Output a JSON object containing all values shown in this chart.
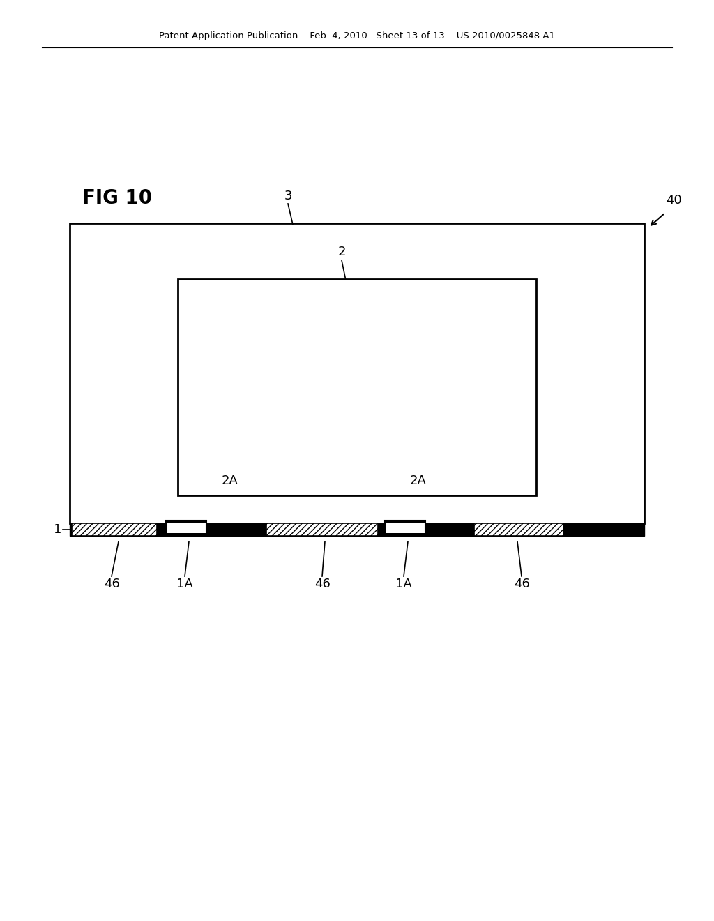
{
  "bg_color": "#ffffff",
  "line_color": "#000000",
  "header_text": "Patent Application Publication    Feb. 4, 2010   Sheet 13 of 13    US 2010/0025848 A1",
  "fig_label": "FIG 10",
  "label_40": "40",
  "label_3": "3",
  "label_2": "2",
  "label_2A_left": "2A",
  "label_2A_right": "2A",
  "label_1": "1",
  "label_1A_left": "1A",
  "label_1A_right": "1A",
  "label_46_left": "46",
  "label_46_center": "46",
  "label_46_right": "46",
  "font_header": 9.5,
  "font_figlabel": 20,
  "font_labels": 13
}
